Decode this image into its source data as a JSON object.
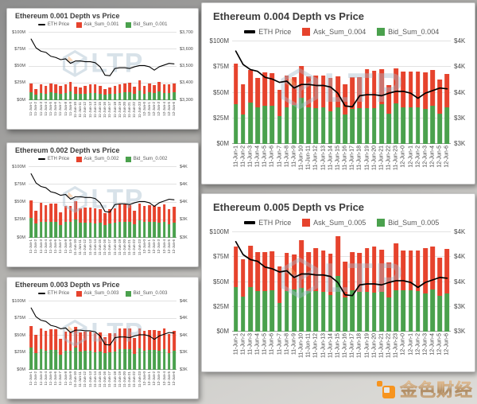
{
  "watermark": {
    "text": "LTP"
  },
  "logo": {
    "text": "金色财经",
    "icon": "golden-finance-icon",
    "accent_color": "#f7941e"
  },
  "colors": {
    "ask": "#e6432d",
    "bid": "#4aa14d",
    "price": "#000000",
    "grid": "#e2e2e2"
  },
  "chart_data": [
    {
      "type": "bar",
      "stacked": true,
      "title": "Ethereum 0.001 Depth vs Price",
      "legend_position": "top",
      "grid": true,
      "categories": [
        "11-Jun-1",
        "11-Jun-2",
        "11-Jun-3",
        "11-Jun-4",
        "11-Jun-5",
        "11-Jun-6",
        "11-Jun-7",
        "11-Jun-8",
        "11-Jun-9",
        "11-Jun-10",
        "11-Jun-11",
        "11-Jun-12",
        "11-Jun-13",
        "11-Jun-14",
        "11-Jun-15",
        "11-Jun-16",
        "11-Jun-17",
        "11-Jun-18",
        "11-Jun-19",
        "11-Jun-20",
        "11-Jun-21",
        "11-Jun-22",
        "11-Jun-23",
        "12-Jun-0",
        "12-Jun-1",
        "12-Jun-2",
        "12-Jun-3",
        "12-Jun-4",
        "12-Jun-5",
        "12-Jun-6"
      ],
      "left_axis": {
        "unit": "USD millions",
        "range": [
          0,
          100
        ],
        "ticks": [
          "$0M",
          "$25M",
          "$50M",
          "$75M",
          "$100M"
        ]
      },
      "right_axis": {
        "unit": "USD",
        "range": [
          3300,
          3700
        ],
        "ticks": [
          "$3,300",
          "$3,400",
          "$3,500",
          "$3,600",
          "$3,700"
        ]
      },
      "series": [
        {
          "name": "ETH Price",
          "type": "line",
          "axis": "right",
          "color": "#000000",
          "values": [
            3662,
            3610,
            3590,
            3583,
            3560,
            3553,
            3540,
            3545,
            3518,
            3532,
            3532,
            3528,
            3528,
            3522,
            3498,
            3448,
            3445,
            3488,
            3492,
            3492,
            3488,
            3498,
            3505,
            3505,
            3498,
            3478,
            3498,
            3508,
            3518,
            3515
          ]
        },
        {
          "name": "Ask_Sum_0.001",
          "type": "bar",
          "axis": "left",
          "color": "#e6432d",
          "values": [
            13,
            9,
            13,
            11,
            13,
            13,
            11,
            12,
            14,
            10,
            10,
            11,
            12,
            12,
            11,
            9,
            10,
            11,
            12,
            13,
            14,
            10,
            15,
            11,
            13,
            11,
            14,
            13,
            12,
            13
          ]
        },
        {
          "name": "Bid_Sum_0.001",
          "type": "bar",
          "axis": "left",
          "color": "#4aa14d",
          "values": [
            12,
            8,
            11,
            10,
            12,
            11,
            10,
            11,
            13,
            10,
            9,
            10,
            11,
            11,
            10,
            8,
            9,
            10,
            11,
            12,
            12,
            10,
            14,
            10,
            12,
            11,
            13,
            11,
            11,
            12
          ]
        }
      ]
    },
    {
      "type": "bar",
      "stacked": true,
      "title": "Ethereum 0.002 Depth vs Price",
      "legend_position": "top",
      "grid": true,
      "categories": [
        "11-Jun-1",
        "11-Jun-2",
        "11-Jun-3",
        "11-Jun-4",
        "11-Jun-5",
        "11-Jun-6",
        "11-Jun-7",
        "11-Jun-8",
        "11-Jun-9",
        "11-Jun-10",
        "11-Jun-11",
        "11-Jun-12",
        "11-Jun-13",
        "11-Jun-14",
        "11-Jun-15",
        "11-Jun-16",
        "11-Jun-17",
        "11-Jun-18",
        "11-Jun-19",
        "11-Jun-20",
        "11-Jun-21",
        "11-Jun-22",
        "11-Jun-23",
        "12-Jun-0",
        "12-Jun-1",
        "12-Jun-2",
        "12-Jun-3",
        "12-Jun-4",
        "12-Jun-5",
        "12-Jun-6"
      ],
      "left_axis": {
        "unit": "USD millions",
        "range": [
          0,
          100
        ],
        "ticks": [
          "$0M",
          "$25M",
          "$50M",
          "$75M",
          "$100M"
        ]
      },
      "right_axis": {
        "unit": "USD",
        "range": [
          3300,
          3700
        ],
        "ticks": [
          "$3K",
          "$3K",
          "$4K",
          "$4K",
          "$4K"
        ]
      },
      "series": [
        {
          "name": "ETH Price",
          "type": "line",
          "axis": "right",
          "color": "#000000",
          "values": [
            3662,
            3610,
            3590,
            3583,
            3560,
            3553,
            3540,
            3545,
            3518,
            3532,
            3532,
            3528,
            3528,
            3522,
            3498,
            3448,
            3445,
            3488,
            3492,
            3492,
            3488,
            3498,
            3505,
            3505,
            3498,
            3478,
            3498,
            3508,
            3518,
            3515
          ]
        },
        {
          "name": "Ask_Sum_0.002",
          "type": "bar",
          "axis": "left",
          "color": "#e6432d",
          "values": [
            25,
            18,
            27,
            24,
            25,
            25,
            18,
            23,
            23,
            26,
            21,
            22,
            22,
            22,
            19,
            17,
            20,
            21,
            24,
            24,
            23,
            19,
            23,
            23,
            24,
            23,
            23,
            24,
            21,
            23
          ]
        },
        {
          "name": "Bid_Sum_0.002",
          "type": "bar",
          "axis": "left",
          "color": "#4aa14d",
          "values": [
            28,
            20,
            23,
            22,
            23,
            23,
            18,
            22,
            22,
            26,
            21,
            21,
            21,
            20,
            21,
            18,
            20,
            21,
            23,
            23,
            23,
            19,
            25,
            22,
            22,
            22,
            21,
            23,
            19,
            21
          ]
        }
      ]
    },
    {
      "type": "bar",
      "stacked": true,
      "title": "Ethereum 0.003 Depth vs Price",
      "legend_position": "top",
      "grid": true,
      "categories": [
        "11-Jun-1",
        "11-Jun-2",
        "11-Jun-3",
        "11-Jun-4",
        "11-Jun-5",
        "11-Jun-6",
        "11-Jun-7",
        "11-Jun-8",
        "11-Jun-9",
        "11-Jun-10",
        "11-Jun-11",
        "11-Jun-12",
        "11-Jun-13",
        "11-Jun-14",
        "11-Jun-15",
        "11-Jun-16",
        "11-Jun-17",
        "11-Jun-18",
        "11-Jun-19",
        "11-Jun-20",
        "11-Jun-21",
        "11-Jun-22",
        "11-Jun-23",
        "12-Jun-0",
        "12-Jun-1",
        "12-Jun-2",
        "12-Jun-3",
        "12-Jun-4",
        "12-Jun-5",
        "12-Jun-6"
      ],
      "left_axis": {
        "unit": "USD millions",
        "range": [
          0,
          100
        ],
        "ticks": [
          "$0M",
          "$25M",
          "$50M",
          "$75M",
          "$100M"
        ]
      },
      "right_axis": {
        "unit": "USD",
        "range": [
          3300,
          3700
        ],
        "ticks": [
          "$3K",
          "$3K",
          "$4K",
          "$4K",
          "$4K"
        ]
      },
      "series": [
        {
          "name": "ETH Price",
          "type": "line",
          "axis": "right",
          "color": "#000000",
          "values": [
            3662,
            3610,
            3590,
            3583,
            3560,
            3553,
            3540,
            3545,
            3518,
            3532,
            3532,
            3528,
            3528,
            3522,
            3498,
            3448,
            3445,
            3488,
            3492,
            3492,
            3488,
            3498,
            3505,
            3505,
            3498,
            3478,
            3498,
            3508,
            3518,
            3515
          ]
        },
        {
          "name": "Ask_Sum_0.003",
          "type": "bar",
          "axis": "left",
          "color": "#e6432d",
          "values": [
            31,
            26,
            30,
            29,
            30,
            30,
            23,
            28,
            28,
            31,
            28,
            28,
            28,
            28,
            28,
            24,
            28,
            27,
            31,
            30,
            31,
            24,
            30,
            29,
            29,
            29,
            29,
            30,
            27,
            29
          ]
        },
        {
          "name": "Bid_Sum_0.003",
          "type": "bar",
          "axis": "left",
          "color": "#4aa14d",
          "values": [
            33,
            25,
            30,
            28,
            29,
            29,
            22,
            28,
            28,
            32,
            27,
            28,
            28,
            26,
            27,
            24,
            26,
            27,
            30,
            30,
            30,
            23,
            31,
            28,
            29,
            29,
            28,
            30,
            25,
            28
          ]
        }
      ]
    },
    {
      "type": "bar",
      "stacked": true,
      "title": "Ethereum 0.004 Depth vs Price",
      "legend_position": "top",
      "grid": true,
      "categories": [
        "11-Jun-1",
        "11-Jun-2",
        "11-Jun-3",
        "11-Jun-4",
        "11-Jun-5",
        "11-Jun-6",
        "11-Jun-7",
        "11-Jun-8",
        "11-Jun-9",
        "11-Jun-10",
        "11-Jun-11",
        "11-Jun-12",
        "11-Jun-13",
        "11-Jun-14",
        "11-Jun-15",
        "11-Jun-16",
        "11-Jun-17",
        "11-Jun-18",
        "11-Jun-19",
        "11-Jun-20",
        "11-Jun-21",
        "11-Jun-22",
        "11-Jun-23",
        "12-Jun-0",
        "12-Jun-1",
        "12-Jun-2",
        "12-Jun-3",
        "12-Jun-4",
        "12-Jun-5",
        "12-Jun-6"
      ],
      "left_axis": {
        "unit": "USD millions",
        "range": [
          0,
          100
        ],
        "ticks": [
          "$0M",
          "$25M",
          "$50M",
          "$75M",
          "$100M"
        ]
      },
      "right_axis": {
        "unit": "USD",
        "range": [
          3300,
          3700
        ],
        "ticks": [
          "$3K",
          "$3K",
          "$4K",
          "$4K",
          "$4K"
        ]
      },
      "series": [
        {
          "name": "ETH Price",
          "type": "line",
          "axis": "right",
          "color": "#000000",
          "values": [
            3662,
            3610,
            3590,
            3583,
            3560,
            3553,
            3540,
            3545,
            3518,
            3532,
            3532,
            3528,
            3528,
            3522,
            3498,
            3448,
            3445,
            3488,
            3492,
            3492,
            3488,
            3498,
            3505,
            3505,
            3498,
            3478,
            3498,
            3508,
            3518,
            3515
          ]
        },
        {
          "name": "Ask_Sum_0.004",
          "type": "bar",
          "axis": "left",
          "color": "#e6432d",
          "values": [
            39,
            29,
            32,
            28.5,
            33,
            32,
            26,
            31,
            27,
            31,
            30.5,
            32,
            31.5,
            32.5,
            30.5,
            29.5,
            31,
            30,
            38,
            36.5,
            34,
            27.5,
            34.5,
            34.5,
            34.5,
            35,
            36,
            35,
            33.5,
            33
          ]
        },
        {
          "name": "Bid_Sum_0.004",
          "type": "bar",
          "axis": "left",
          "color": "#4aa14d",
          "values": [
            39,
            29,
            40,
            35.5,
            37,
            37,
            27,
            36,
            38,
            45,
            35.5,
            35,
            35.5,
            31.5,
            35.5,
            28.5,
            34,
            35,
            35,
            35,
            39,
            29.5,
            39.5,
            36,
            36,
            35.5,
            34,
            37,
            29.5,
            35.5
          ]
        }
      ]
    },
    {
      "type": "bar",
      "stacked": true,
      "title": "Ethereum 0.005 Depth vs Price",
      "legend_position": "top",
      "grid": true,
      "categories": [
        "11-Jun-1",
        "11-Jun-2",
        "11-Jun-3",
        "11-Jun-4",
        "11-Jun-5",
        "11-Jun-6",
        "11-Jun-7",
        "11-Jun-8",
        "11-Jun-9",
        "11-Jun-10",
        "11-Jun-11",
        "11-Jun-12",
        "11-Jun-13",
        "11-Jun-14",
        "11-Jun-15",
        "11-Jun-16",
        "11-Jun-17",
        "11-Jun-18",
        "11-Jun-19",
        "11-Jun-20",
        "11-Jun-21",
        "11-Jun-22",
        "11-Jun-23",
        "12-Jun-0",
        "12-Jun-1",
        "12-Jun-2",
        "12-Jun-3",
        "12-Jun-4",
        "12-Jun-5",
        "12-Jun-6"
      ],
      "left_axis": {
        "unit": "USD millions",
        "range": [
          0,
          100
        ],
        "ticks": [
          "$0M",
          "$25M",
          "$50M",
          "$75M",
          "$100M"
        ]
      },
      "right_axis": {
        "unit": "USD",
        "range": [
          3300,
          3700
        ],
        "ticks": [
          "$3K",
          "$3K",
          "$4K",
          "$4K",
          "$4K"
        ]
      },
      "series": [
        {
          "name": "ETH Price",
          "type": "line",
          "axis": "right",
          "color": "#000000",
          "values": [
            3662,
            3610,
            3590,
            3583,
            3560,
            3553,
            3540,
            3545,
            3518,
            3532,
            3532,
            3528,
            3528,
            3522,
            3498,
            3448,
            3445,
            3488,
            3492,
            3492,
            3488,
            3498,
            3505,
            3505,
            3498,
            3478,
            3498,
            3508,
            3518,
            3515
          ]
        },
        {
          "name": "Ask_Sum_0.005",
          "type": "bar",
          "axis": "left",
          "color": "#e6432d",
          "values": [
            41.5,
            37.5,
            41.5,
            39,
            39.5,
            39,
            37,
            38.5,
            35.5,
            48,
            39.5,
            43.5,
            41.5,
            41.5,
            40,
            36,
            38.5,
            39,
            44,
            47,
            42.5,
            35.5,
            46.5,
            40,
            40,
            41.5,
            45.5,
            43.5,
            38.5,
            45
          ]
        },
        {
          "name": "Bid_Sum_0.005",
          "type": "bar",
          "axis": "left",
          "color": "#4aa14d",
          "values": [
            44.5,
            35,
            45,
            41,
            40.5,
            41.5,
            28.5,
            40.5,
            42.5,
            44,
            40.5,
            40.5,
            40,
            37,
            56,
            34.5,
            41.5,
            40,
            40,
            39,
            40,
            34.5,
            42,
            41.5,
            41.5,
            40.5,
            38.5,
            42.5,
            36,
            38.5
          ]
        }
      ]
    }
  ]
}
